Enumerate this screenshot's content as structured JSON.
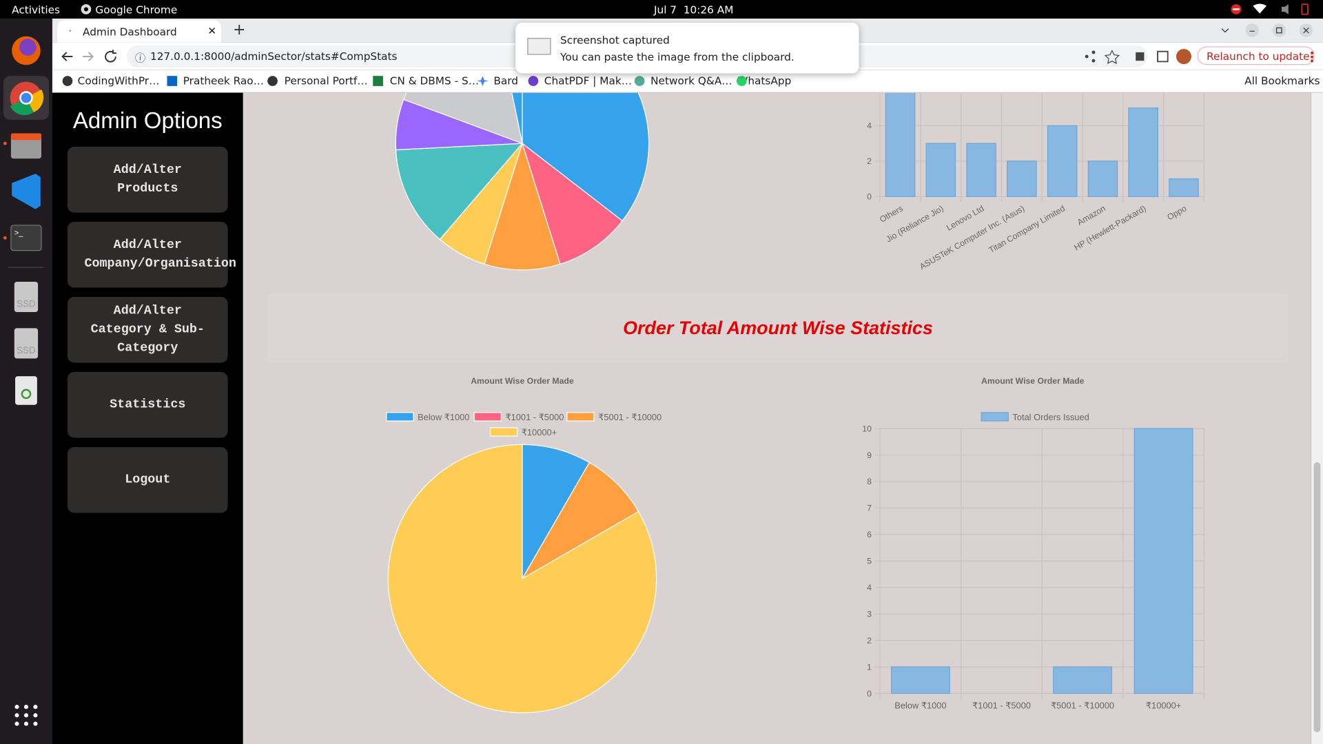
{
  "system_bar": {
    "activities": "Activities",
    "app": "Google Chrome",
    "clock": "Jul 7  10:26 AM"
  },
  "dock": {
    "labels": [
      "SSD",
      "SSD"
    ]
  },
  "browser": {
    "tab_title": "Admin Dashboard",
    "url": "127.0.0.1:8000/adminSector/stats#CompStats",
    "relaunch": "Relaunch to update",
    "bookmarks": [
      "CodingWithPr…",
      "Pratheek Rao…",
      "Personal Portf…",
      "CN & DBMS - S…",
      "Bard",
      "ChatPDF | Mak…",
      "Network Q&A…",
      "WhatsApp"
    ],
    "all_bookmarks": "All Bookmarks"
  },
  "notification": {
    "title": "Screenshot captured",
    "body": "You can paste the image from the clipboard."
  },
  "sidebar": {
    "title": "Admin Options",
    "buttons": [
      "Add/Alter Products",
      "Add/Alter Company/Organisation",
      "Add/Alter Category & Sub-Category",
      "Statistics",
      "Logout"
    ]
  },
  "section_heading": "Order Total Amount Wise Statistics",
  "charts": [
    {
      "type": "pie",
      "values": [
        11,
        3,
        3,
        2,
        4,
        2,
        5,
        1
      ],
      "colors": [
        "#36a2eb",
        "#ff6384",
        "#ff9f40",
        "#ffcd56",
        "#4bc0c0",
        "#9966ff",
        "#c9cbcf",
        "#36a2eb"
      ]
    },
    {
      "type": "bar",
      "categories": [
        "Others",
        "Jio (Reliance Jio)",
        "Lenovo Ltd",
        "ASUSTeK Computer Inc. (Asus)",
        "Titan Company Limited",
        "Amazon",
        "HP (Hewlett-Packard)",
        "Oppo"
      ],
      "values": [
        11,
        3,
        3,
        2,
        4,
        2,
        5,
        1
      ],
      "color": "#88b8e1",
      "ylim": [
        0,
        12
      ],
      "yticks": [
        0,
        2,
        4
      ],
      "grid": true
    },
    {
      "type": "pie",
      "title": "Amount Wise Order Made",
      "categories": [
        "Below ₹1000",
        "₹1001 - ₹5000",
        "₹5001 - ₹10000",
        "₹10000+"
      ],
      "values": [
        1,
        0,
        1,
        10
      ],
      "colors": [
        "#36a2eb",
        "#ff6384",
        "#ff9f40",
        "#ffcd56"
      ]
    },
    {
      "type": "bar",
      "title": "Amount Wise Order Made",
      "categories": [
        "Below ₹1000",
        "₹1001 - ₹5000",
        "₹5001 - ₹10000",
        "₹10000+"
      ],
      "series": [
        {
          "name": "Total Orders Issued",
          "color": "#88b8e1",
          "values": [
            1,
            0,
            1,
            10
          ]
        }
      ],
      "ylim": [
        0,
        10
      ],
      "yticks": [
        0,
        1,
        2,
        3,
        4,
        5,
        6,
        7,
        8,
        9,
        10
      ],
      "grid": true
    }
  ]
}
